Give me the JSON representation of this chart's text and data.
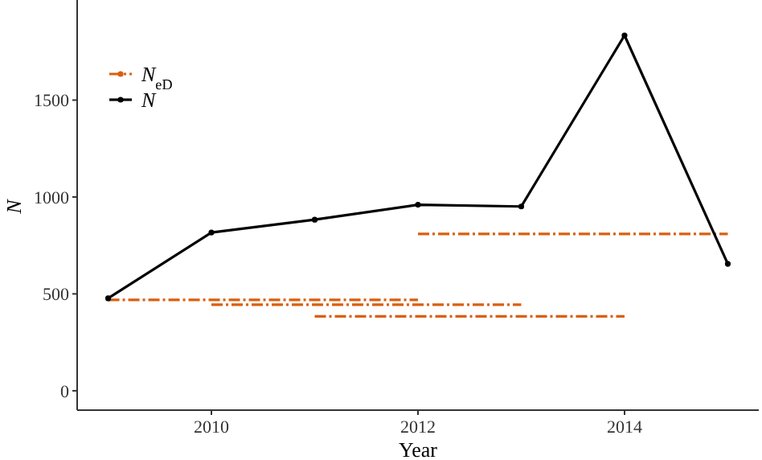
{
  "chart_data": {
    "type": "line",
    "xlabel": "Year",
    "ylabel": "N",
    "x": [
      2009,
      2010,
      2011,
      2012,
      2013,
      2014,
      2015
    ],
    "xlim": [
      2008.7,
      2015.3
    ],
    "xticks": [
      2010,
      2012,
      2014
    ],
    "ylim": [
      -100,
      2000
    ],
    "yticks": [
      0,
      500,
      1000,
      1500
    ],
    "grid": false,
    "legend": "top left",
    "line_style": "solid",
    "series": [
      {
        "name": "N$_{eD}$",
        "color": "#d95f0e",
        "x": [
          2009,
          2012
        ],
        "values": [
          469,
          469
        ],
        "line_style": "dashed",
        "marker": "none"
      },
      {
        "color": "#d95f0e",
        "x": [
          2010,
          2013
        ],
        "values": [
          444,
          444
        ],
        "line_style": "dashed",
        "marker": "none"
      },
      {
        "color": "#d95f0e",
        "x": [
          2011,
          2014
        ],
        "values": [
          384,
          384
        ],
        "line_style": "dashed",
        "marker": "none"
      },
      {
        "color": "#d95f0e",
        "x": [
          2012,
          2015
        ],
        "values": [
          809,
          809
        ],
        "line_style": "dashed",
        "marker": "none"
      },
      {
        "name": "N",
        "color": "#000000",
        "values": [
          477,
          817,
          883,
          960,
          951,
          1834,
          655
        ],
        "marker": "circle"
      }
    ]
  }
}
